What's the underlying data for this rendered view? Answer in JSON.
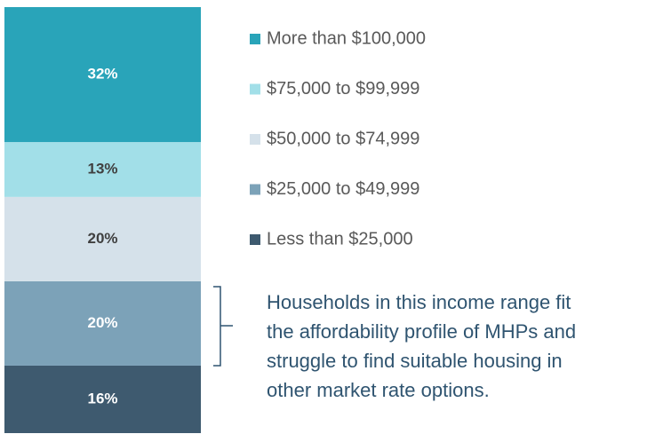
{
  "chart_data": {
    "type": "stacked-bar",
    "series": [
      {
        "name": "Less than $25,000",
        "color": "#3e5a6f",
        "label_color": "#ffffff",
        "values": [
          16
        ],
        "value_labels": [
          "16%"
        ]
      },
      {
        "name": "$25,000 to $49,999",
        "color": "#7ca2b8",
        "label_color": "#ffffff",
        "values": [
          20
        ],
        "value_labels": [
          "20%"
        ]
      },
      {
        "name": "$50,000 to $74,999",
        "color": "#d5e1ea",
        "label_color": "#404040",
        "values": [
          20
        ],
        "value_labels": [
          "20%"
        ]
      },
      {
        "name": "$75,000 to $99,999",
        "color": "#a2dfe8",
        "label_color": "#404040",
        "values": [
          13
        ],
        "value_labels": [
          "13%"
        ]
      },
      {
        "name": "More than $100,000",
        "color": "#29a4b9",
        "label_color": "#ffffff",
        "values": [
          32
        ],
        "value_labels": [
          "32%"
        ]
      }
    ],
    "annotation": [
      "Households in this income range fit",
      "the affordability profile of MHPs and",
      "struggle to find suitable housing in",
      "other market rate options."
    ]
  }
}
